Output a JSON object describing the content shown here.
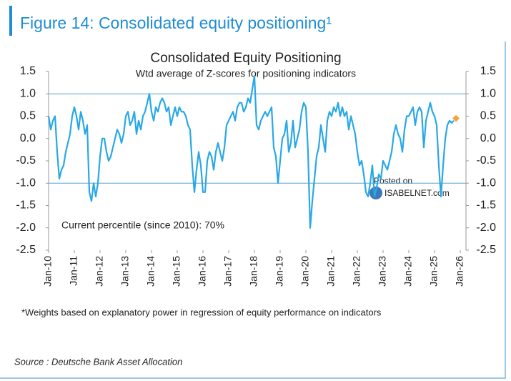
{
  "chart_data": {
    "type": "line",
    "figure_title": "Figure 14: Consolidated equity positioning¹",
    "title": "Consolidated Equity Positioning",
    "subtitle": "Wtd average of Z-scores for positioning indicators",
    "annotation": "Current percentile (since 2010): 70%",
    "footnote": "*Weights based on explanatory power in regression of equity performance on indicators",
    "source": "Source : Deutsche Bank Asset Allocation",
    "watermark": {
      "line1": "Posted on",
      "line2": "ISABELNET.com"
    },
    "x": [
      "2010-01",
      "2010-02",
      "2010-03",
      "2010-04",
      "2010-05",
      "2010-06",
      "2010-07",
      "2010-08",
      "2010-09",
      "2010-10",
      "2010-11",
      "2010-12",
      "2011-01",
      "2011-02",
      "2011-03",
      "2011-04",
      "2011-05",
      "2011-06",
      "2011-07",
      "2011-08",
      "2011-09",
      "2011-10",
      "2011-11",
      "2011-12",
      "2012-01",
      "2012-02",
      "2012-03",
      "2012-04",
      "2012-05",
      "2012-06",
      "2012-07",
      "2012-08",
      "2012-09",
      "2012-10",
      "2012-11",
      "2012-12",
      "2013-01",
      "2013-02",
      "2013-03",
      "2013-04",
      "2013-05",
      "2013-06",
      "2013-07",
      "2013-08",
      "2013-09",
      "2013-10",
      "2013-11",
      "2013-12",
      "2014-01",
      "2014-02",
      "2014-03",
      "2014-04",
      "2014-05",
      "2014-06",
      "2014-07",
      "2014-08",
      "2014-09",
      "2014-10",
      "2014-11",
      "2014-12",
      "2015-01",
      "2015-02",
      "2015-03",
      "2015-04",
      "2015-05",
      "2015-06",
      "2015-07",
      "2015-08",
      "2015-09",
      "2015-10",
      "2015-11",
      "2015-12",
      "2016-01",
      "2016-02",
      "2016-03",
      "2016-04",
      "2016-05",
      "2016-06",
      "2016-07",
      "2016-08",
      "2016-09",
      "2016-10",
      "2016-11",
      "2016-12",
      "2017-01",
      "2017-02",
      "2017-03",
      "2017-04",
      "2017-05",
      "2017-06",
      "2017-07",
      "2017-08",
      "2017-09",
      "2017-10",
      "2017-11",
      "2017-12",
      "2018-01",
      "2018-02",
      "2018-03",
      "2018-04",
      "2018-05",
      "2018-06",
      "2018-07",
      "2018-08",
      "2018-09",
      "2018-10",
      "2018-11",
      "2018-12",
      "2019-01",
      "2019-02",
      "2019-03",
      "2019-04",
      "2019-05",
      "2019-06",
      "2019-07",
      "2019-08",
      "2019-09",
      "2019-10",
      "2019-11",
      "2019-12",
      "2020-01",
      "2020-02",
      "2020-03",
      "2020-04",
      "2020-05",
      "2020-06",
      "2020-07",
      "2020-08",
      "2020-09",
      "2020-10",
      "2020-11",
      "2020-12",
      "2021-01",
      "2021-02",
      "2021-03",
      "2021-04",
      "2021-05",
      "2021-06",
      "2021-07",
      "2021-08",
      "2021-09",
      "2021-10",
      "2021-11",
      "2021-12",
      "2022-01",
      "2022-02",
      "2022-03",
      "2022-04",
      "2022-05",
      "2022-06",
      "2022-07",
      "2022-08",
      "2022-09",
      "2022-10",
      "2022-11",
      "2022-12",
      "2023-01",
      "2023-02",
      "2023-03",
      "2023-04",
      "2023-05",
      "2023-06",
      "2023-07",
      "2023-08",
      "2023-09",
      "2023-10",
      "2023-11",
      "2023-12",
      "2024-01",
      "2024-02",
      "2024-03",
      "2024-04",
      "2024-05",
      "2024-06",
      "2024-07",
      "2024-08",
      "2024-09",
      "2024-10",
      "2024-11",
      "2024-12",
      "2025-01",
      "2025-02",
      "2025-03",
      "2025-04",
      "2025-05",
      "2025-06",
      "2025-07",
      "2025-08",
      "2025-09",
      "2025-10"
    ],
    "series": [
      {
        "color": "#29a8e6",
        "values": [
          0.5,
          0.2,
          0.4,
          0.5,
          -0.3,
          -0.9,
          -0.7,
          -0.6,
          -0.3,
          -0.1,
          0.1,
          0.5,
          0.7,
          0.5,
          0.2,
          0.6,
          0.4,
          0.1,
          0.3,
          -1.2,
          -1.4,
          -1.0,
          -1.3,
          -1.0,
          -0.4,
          0.0,
          0.0,
          -0.3,
          -0.5,
          -0.4,
          -0.2,
          0.0,
          0.2,
          0.1,
          -0.1,
          0.1,
          0.5,
          0.6,
          0.3,
          0.4,
          0.6,
          0.1,
          0.4,
          0.2,
          0.5,
          0.6,
          0.8,
          1.0,
          0.6,
          0.4,
          0.7,
          0.6,
          0.8,
          0.9,
          0.8,
          0.6,
          0.7,
          0.3,
          0.5,
          0.7,
          0.5,
          0.7,
          0.6,
          0.6,
          0.5,
          0.3,
          0.2,
          -0.6,
          -1.2,
          -0.7,
          -0.3,
          -0.6,
          -1.2,
          -1.2,
          -0.5,
          -0.3,
          -0.4,
          -0.7,
          -0.3,
          -0.1,
          -0.3,
          -0.5,
          -0.2,
          0.3,
          0.4,
          0.5,
          0.6,
          0.4,
          0.7,
          0.8,
          0.8,
          0.6,
          0.7,
          0.9,
          0.8,
          1.1,
          1.4,
          0.3,
          0.2,
          0.4,
          0.5,
          0.6,
          0.5,
          0.6,
          0.7,
          -0.2,
          -0.4,
          -1.0,
          -0.5,
          0.0,
          0.1,
          0.4,
          -0.3,
          -0.1,
          0.4,
          -0.2,
          0.0,
          0.2,
          0.6,
          0.8,
          0.7,
          -0.3,
          -2.0,
          -1.4,
          -0.9,
          -0.4,
          -0.2,
          0.3,
          0.0,
          -0.3,
          0.4,
          0.6,
          0.5,
          0.7,
          0.6,
          0.8,
          0.5,
          0.7,
          0.5,
          0.6,
          0.2,
          0.5,
          0.3,
          0.1,
          -0.3,
          -0.6,
          -0.5,
          -0.8,
          -1.2,
          -1.3,
          -1.0,
          -0.6,
          -1.3,
          -1.1,
          -0.8,
          -0.9,
          -0.5,
          -0.6,
          -0.7,
          -0.5,
          -0.3,
          0.1,
          0.3,
          0.1,
          0.0,
          -0.3,
          0.2,
          0.5,
          0.5,
          0.6,
          0.7,
          0.3,
          0.6,
          0.7,
          0.6,
          -0.2,
          0.4,
          0.6,
          0.8,
          0.6,
          0.5,
          0.3,
          -0.6,
          -1.3,
          -0.6,
          0.0,
          0.3,
          0.4,
          0.35,
          0.4
        ]
      }
    ],
    "latest": {
      "x": "2025-11",
      "value": 0.45,
      "color": "#f4a442"
    },
    "hlines": [
      1,
      -1
    ],
    "xlim": [
      "2010-01",
      "2026-01"
    ],
    "xticks": [
      {
        "value": "2010-01",
        "label": "Jan-10"
      },
      {
        "value": "2011-01",
        "label": "Jan-11"
      },
      {
        "value": "2012-01",
        "label": "Jan-12"
      },
      {
        "value": "2013-01",
        "label": "Jan-13"
      },
      {
        "value": "2014-01",
        "label": "Jan-14"
      },
      {
        "value": "2015-01",
        "label": "Jan-15"
      },
      {
        "value": "2016-01",
        "label": "Jan-16"
      },
      {
        "value": "2017-01",
        "label": "Jan-17"
      },
      {
        "value": "2018-01",
        "label": "Jan-18"
      },
      {
        "value": "2019-01",
        "label": "Jan-19"
      },
      {
        "value": "2020-01",
        "label": "Jan-20"
      },
      {
        "value": "2021-01",
        "label": "Jan-21"
      },
      {
        "value": "2022-01",
        "label": "Jan-22"
      },
      {
        "value": "2023-01",
        "label": "Jan-23"
      },
      {
        "value": "2024-01",
        "label": "Jan-24"
      },
      {
        "value": "2025-01",
        "label": "Jan-25"
      },
      {
        "value": "2026-01",
        "label": "Jan-26"
      }
    ],
    "ylim": [
      -2.5,
      1.5
    ],
    "yticks": [
      -2.5,
      {
        "value": -2,
        "label": "-2.0"
      },
      -1.5,
      {
        "value": -1,
        "label": "-1.0"
      },
      -0.5,
      {
        "value": 0,
        "label": "0.0"
      },
      0.5,
      {
        "value": 1,
        "label": "1.0"
      },
      1.5
    ]
  }
}
